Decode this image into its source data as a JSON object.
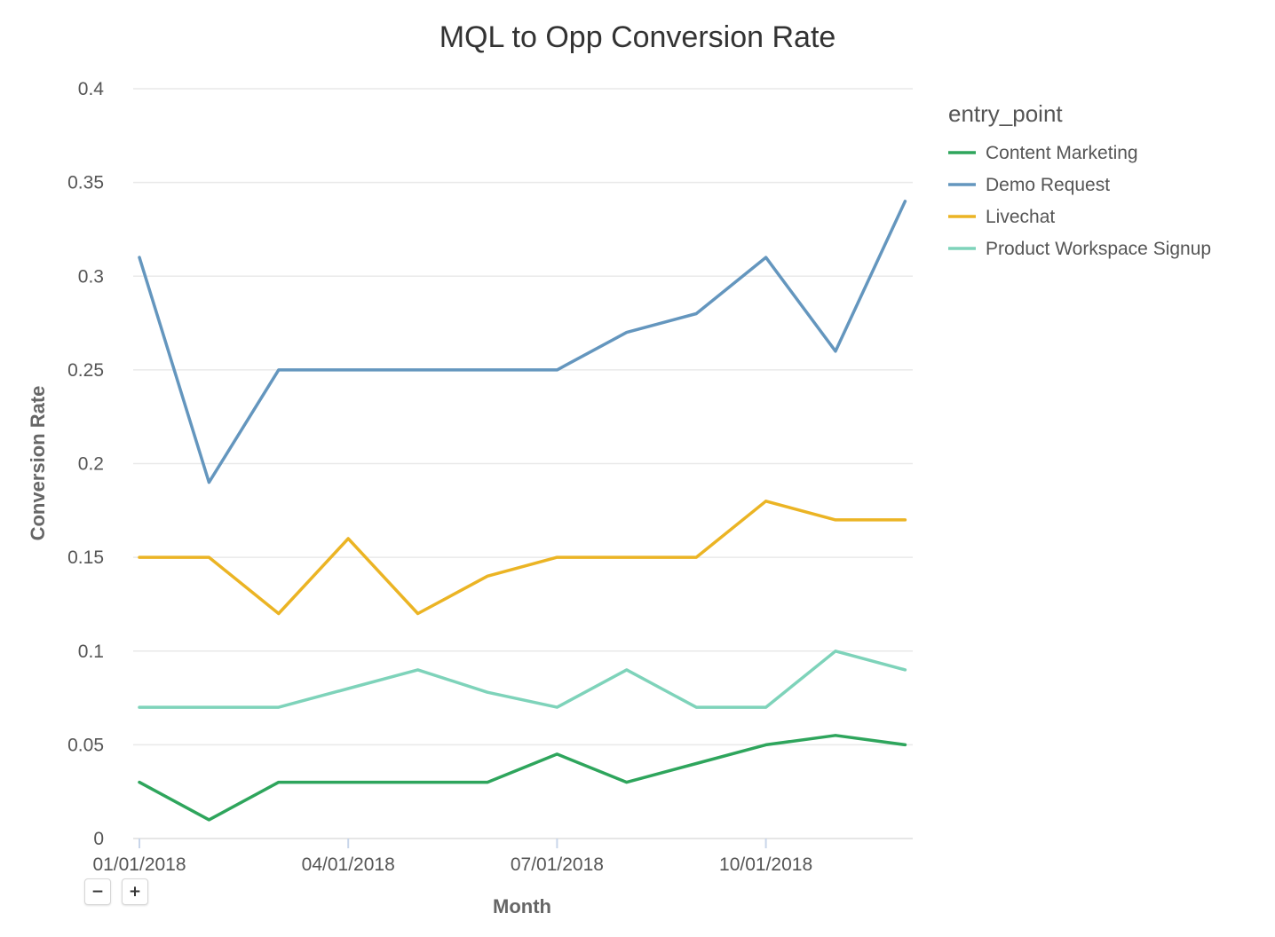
{
  "chart_data": {
    "type": "line",
    "title": "MQL to Opp Conversion Rate",
    "xlabel": "Month",
    "ylabel": "Conversion Rate",
    "ylim": [
      0,
      0.4
    ],
    "yticks": [
      0,
      0.05,
      0.1,
      0.15,
      0.2,
      0.25,
      0.3,
      0.35,
      0.4
    ],
    "ytick_labels": [
      "0",
      "0.05",
      "0.1",
      "0.15",
      "0.2",
      "0.25",
      "0.3",
      "0.35",
      "0.4"
    ],
    "x": [
      "2018-01",
      "2018-02",
      "2018-03",
      "2018-04",
      "2018-05",
      "2018-06",
      "2018-07",
      "2018-08",
      "2018-09",
      "2018-10",
      "2018-11",
      "2018-12"
    ],
    "xtick_labels": [
      "01/01/2018",
      "04/01/2018",
      "07/01/2018",
      "10/01/2018"
    ],
    "xtick_months": [
      "2018-01",
      "2018-04",
      "2018-07",
      "2018-10"
    ],
    "grid": true,
    "legend": {
      "title": "entry_point",
      "position": "right"
    },
    "series": [
      {
        "name": "Content Marketing",
        "color": "#2ea55c",
        "values": [
          0.03,
          0.01,
          0.03,
          0.03,
          0.03,
          0.03,
          0.045,
          0.03,
          0.04,
          0.05,
          0.055,
          0.05
        ]
      },
      {
        "name": "Demo Request",
        "color": "#6496be",
        "values": [
          0.31,
          0.19,
          0.25,
          0.25,
          0.25,
          0.25,
          0.25,
          0.27,
          0.28,
          0.31,
          0.26,
          0.34
        ]
      },
      {
        "name": "Livechat",
        "color": "#ebb424",
        "values": [
          0.15,
          0.15,
          0.12,
          0.16,
          0.12,
          0.14,
          0.15,
          0.15,
          0.15,
          0.18,
          0.17,
          0.17
        ]
      },
      {
        "name": "Product Workspace Signup",
        "color": "#7ed3ba",
        "values": [
          0.07,
          0.07,
          0.07,
          0.08,
          0.09,
          0.078,
          0.07,
          0.09,
          0.07,
          0.07,
          0.1,
          0.09
        ]
      }
    ]
  },
  "controls": {
    "zoom_out_label": "−",
    "zoom_in_label": "+"
  }
}
